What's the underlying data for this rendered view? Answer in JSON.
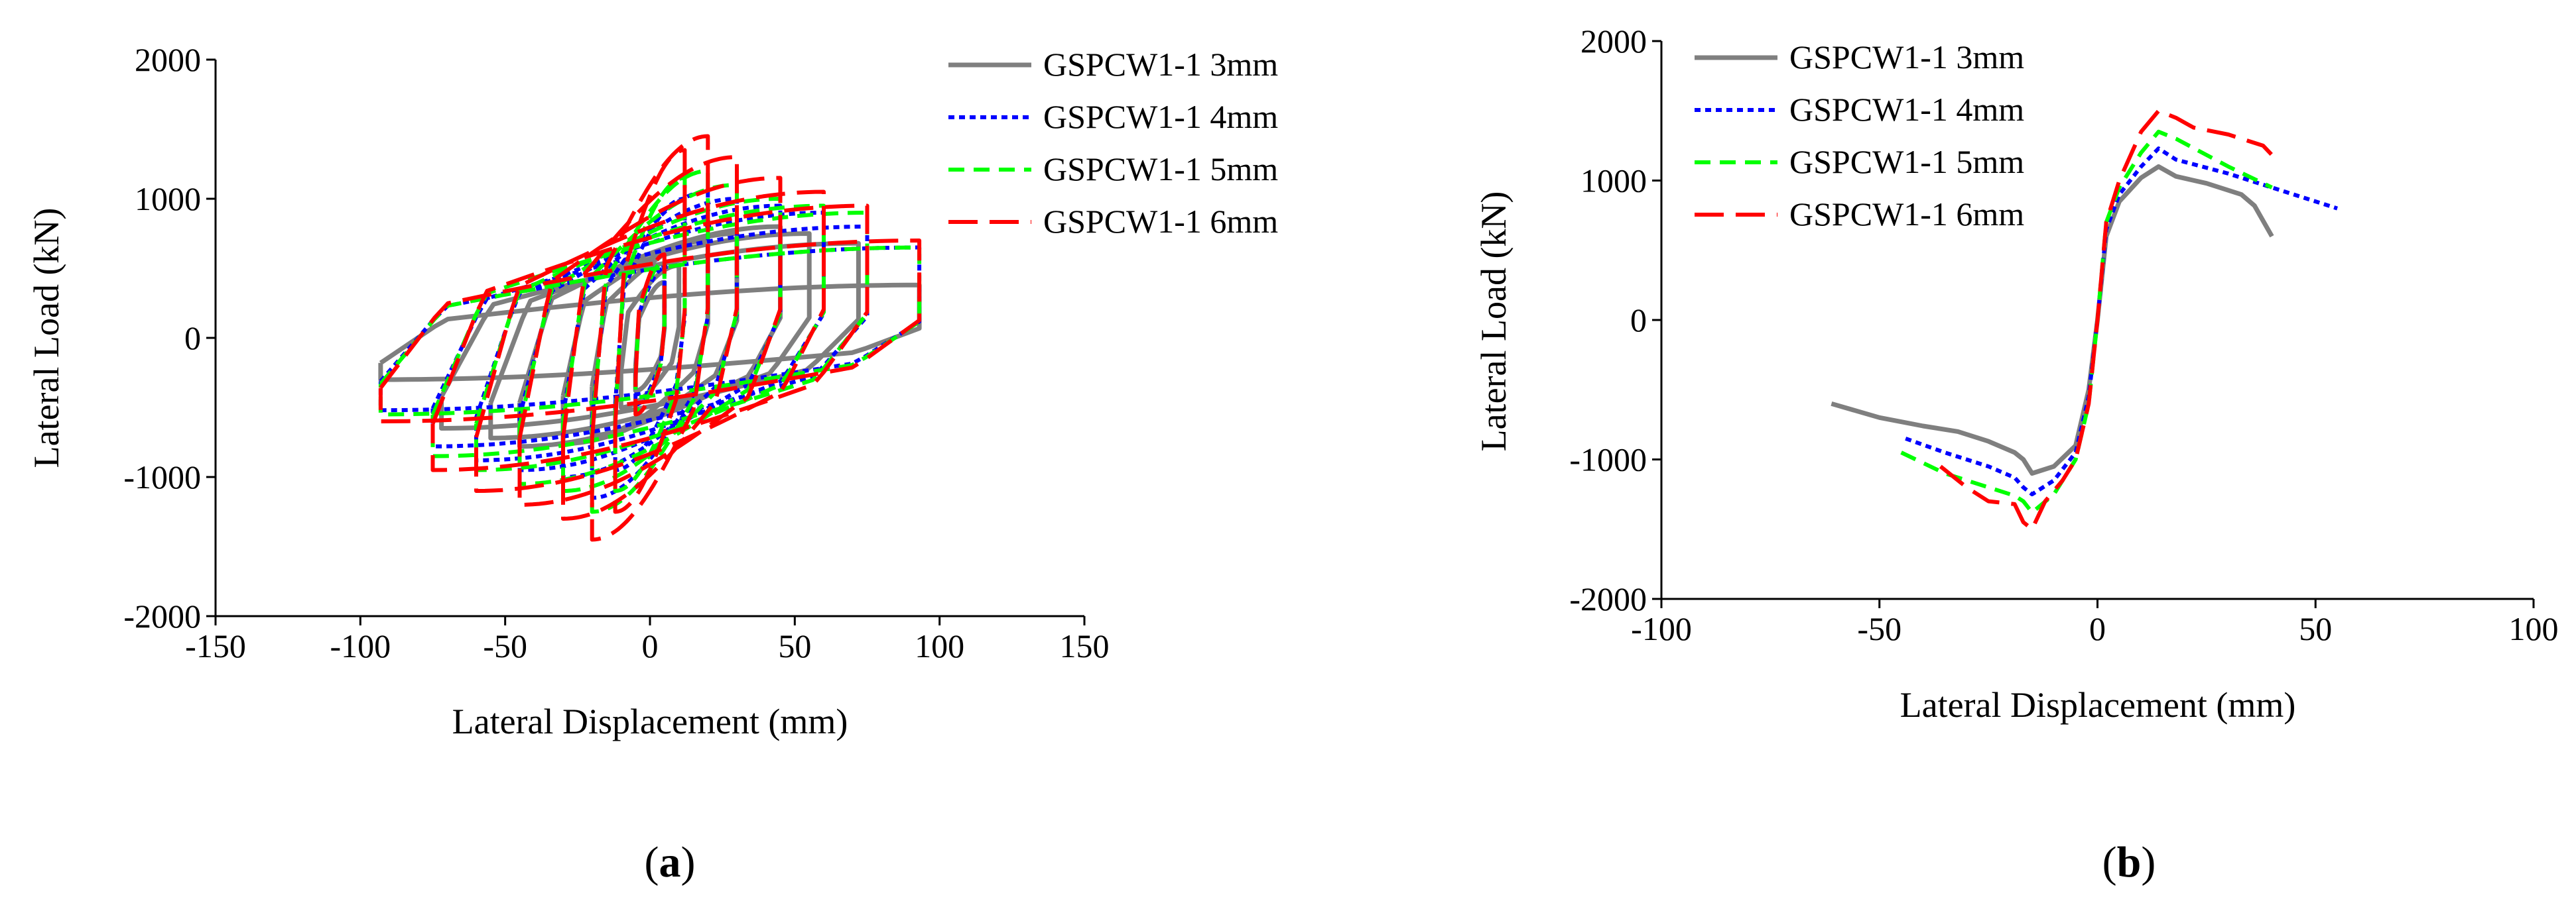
{
  "chart_data": [
    {
      "id": "a",
      "type": "line",
      "subtype": "hysteresis",
      "caption": {
        "open": "(",
        "letter": "a",
        "close": ")"
      },
      "xlabel": "Lateral Displacement (mm)",
      "ylabel": "Lateral Load (kN)",
      "xlim": [
        -150,
        150
      ],
      "ylim": [
        -2000,
        2000
      ],
      "xticks": [
        -150,
        -100,
        -50,
        0,
        50,
        100,
        150
      ],
      "yticks": [
        -2000,
        -1000,
        0,
        1000,
        2000
      ],
      "legend_position": "top-right",
      "series": [
        {
          "name": "GSPCW1-1 3mm",
          "color": "#7f7f7f",
          "style": "solid",
          "loops": [
            {
              "amp": 5,
              "fp": 400,
              "fn": -380,
              "kp": 0.55,
              "kn": 0.55
            },
            {
              "amp": 10,
              "fp": 520,
              "fn": -500,
              "kp": 0.5,
              "kn": 0.5
            },
            {
              "amp": 20,
              "fp": 700,
              "fn": -700,
              "kp": 0.5,
              "kn": 0.5
            },
            {
              "amp": 30,
              "fp": 750,
              "fn": -760,
              "kp": 0.55,
              "kn": 0.55
            },
            {
              "amp": 45,
              "fp": 800,
              "fn": -780,
              "kp": 0.6,
              "kn": 0.6
            },
            {
              "amp": 55,
              "fp": 750,
              "fn": -720,
              "kp": 0.65,
              "kn": 0.65
            },
            {
              "amp": 72,
              "fp": 680,
              "fn": -650,
              "kp": 0.65,
              "kn": 0.65
            },
            {
              "amp": 93,
              "fp": 380,
              "fn": -300,
              "kp": 0.6,
              "kn": 0.6
            }
          ]
        },
        {
          "name": "GSPCW1-1 4mm",
          "color": "#0000ff",
          "style": "dotted",
          "loops": [
            {
              "amp": 5,
              "fp": 500,
              "fn": -480,
              "kp": 0.55,
              "kn": 0.55
            },
            {
              "amp": 12,
              "fp": 1000,
              "fn": -950,
              "kp": 0.5,
              "kn": 0.5
            },
            {
              "amp": 20,
              "fp": 1050,
              "fn": -1150,
              "kp": 0.5,
              "kn": 0.5
            },
            {
              "amp": 30,
              "fp": 1000,
              "fn": -1000,
              "kp": 0.55,
              "kn": 0.55
            },
            {
              "amp": 45,
              "fp": 950,
              "fn": -950,
              "kp": 0.6,
              "kn": 0.6
            },
            {
              "amp": 60,
              "fp": 900,
              "fn": -880,
              "kp": 0.65,
              "kn": 0.65
            },
            {
              "amp": 75,
              "fp": 800,
              "fn": -780,
              "kp": 0.65,
              "kn": 0.65
            },
            {
              "amp": 93,
              "fp": 650,
              "fn": -520,
              "kp": 0.6,
              "kn": 0.6
            }
          ]
        },
        {
          "name": "GSPCW1-1 5mm",
          "color": "#00ff00",
          "style": "dashed",
          "loops": [
            {
              "amp": 5,
              "fp": 550,
              "fn": -520,
              "kp": 0.55,
              "kn": 0.55
            },
            {
              "amp": 12,
              "fp": 1150,
              "fn": -1100,
              "kp": 0.5,
              "kn": 0.5
            },
            {
              "amp": 20,
              "fp": 1200,
              "fn": -1250,
              "kp": 0.5,
              "kn": 0.5
            },
            {
              "amp": 30,
              "fp": 1100,
              "fn": -1100,
              "kp": 0.55,
              "kn": 0.55
            },
            {
              "amp": 45,
              "fp": 1000,
              "fn": -1050,
              "kp": 0.6,
              "kn": 0.6
            },
            {
              "amp": 60,
              "fp": 950,
              "fn": -950,
              "kp": 0.65,
              "kn": 0.65
            },
            {
              "amp": 75,
              "fp": 900,
              "fn": -850,
              "kp": 0.65,
              "kn": 0.65
            },
            {
              "amp": 93,
              "fp": 650,
              "fn": -550,
              "kp": 0.6,
              "kn": 0.6
            }
          ]
        },
        {
          "name": "GSPCW1-1 6mm",
          "color": "#ff0000",
          "style": "longdash",
          "loops": [
            {
              "amp": 5,
              "fp": 600,
              "fn": -550,
              "kp": 0.55,
              "kn": 0.55
            },
            {
              "amp": 12,
              "fp": 1350,
              "fn": -1250,
              "kp": 0.5,
              "kn": 0.5
            },
            {
              "amp": 20,
              "fp": 1450,
              "fn": -1450,
              "kp": 0.5,
              "kn": 0.5
            },
            {
              "amp": 30,
              "fp": 1300,
              "fn": -1300,
              "kp": 0.55,
              "kn": 0.55
            },
            {
              "amp": 45,
              "fp": 1150,
              "fn": -1200,
              "kp": 0.6,
              "kn": 0.6
            },
            {
              "amp": 60,
              "fp": 1050,
              "fn": -1100,
              "kp": 0.65,
              "kn": 0.65
            },
            {
              "amp": 75,
              "fp": 950,
              "fn": -950,
              "kp": 0.65,
              "kn": 0.65
            },
            {
              "amp": 93,
              "fp": 700,
              "fn": -600,
              "kp": 0.6,
              "kn": 0.6
            }
          ]
        }
      ]
    },
    {
      "id": "b",
      "type": "line",
      "subtype": "skeleton",
      "caption": {
        "open": "(",
        "letter": "b",
        "close": ")"
      },
      "xlabel": "Lateral Displacement (mm)",
      "ylabel": "Lateral Load (kN)",
      "xlim": [
        -100,
        100
      ],
      "ylim": [
        -2000,
        2000
      ],
      "xticks": [
        -100,
        -50,
        0,
        50,
        100
      ],
      "yticks": [
        -2000,
        -1000,
        0,
        1000,
        2000
      ],
      "legend_position": "top-left",
      "series": [
        {
          "name": "GSPCW1-1 3mm",
          "color": "#7f7f7f",
          "style": "solid",
          "x": [
            -61,
            -50,
            -40,
            -32,
            -25,
            -19,
            -17,
            -15,
            -10,
            -5,
            -2,
            0,
            2,
            5,
            10,
            14,
            18,
            25,
            33,
            36,
            40
          ],
          "y": [
            -600,
            -700,
            -760,
            -800,
            -870,
            -950,
            -1000,
            -1100,
            -1050,
            -900,
            -500,
            0,
            600,
            850,
            1020,
            1100,
            1030,
            980,
            900,
            820,
            600
          ]
        },
        {
          "name": "GSPCW1-1 4mm",
          "color": "#0000ff",
          "style": "dotted",
          "x": [
            -44,
            -35,
            -25,
            -19,
            -17,
            -15,
            -10,
            -5,
            -2,
            0,
            2,
            5,
            10,
            14,
            18,
            30,
            40,
            55
          ],
          "y": [
            -850,
            -950,
            -1050,
            -1130,
            -1200,
            -1250,
            -1150,
            -950,
            -550,
            0,
            650,
            900,
            1100,
            1230,
            1150,
            1050,
            950,
            800
          ]
        },
        {
          "name": "GSPCW1-1 5mm",
          "color": "#00ff00",
          "style": "dashed",
          "x": [
            -45,
            -35,
            -25,
            -19,
            -17,
            -15,
            -10,
            -5,
            -2,
            0,
            2,
            5,
            10,
            14,
            18,
            30,
            40
          ],
          "y": [
            -950,
            -1100,
            -1200,
            -1260,
            -1300,
            -1380,
            -1250,
            -1000,
            -600,
            0,
            700,
            950,
            1200,
            1350,
            1300,
            1100,
            950
          ]
        },
        {
          "name": "GSPCW1-1 6mm",
          "color": "#ff0000",
          "style": "longdash",
          "x": [
            -36,
            -30,
            -25,
            -19,
            -17,
            -15,
            -12,
            -8,
            -5,
            -2,
            0,
            2,
            5,
            10,
            14,
            18,
            22,
            30,
            38,
            41
          ],
          "y": [
            -1050,
            -1200,
            -1300,
            -1320,
            -1450,
            -1500,
            -1300,
            -1150,
            -1000,
            -600,
            0,
            700,
            1000,
            1350,
            1500,
            1450,
            1380,
            1330,
            1250,
            1150
          ]
        }
      ]
    }
  ]
}
